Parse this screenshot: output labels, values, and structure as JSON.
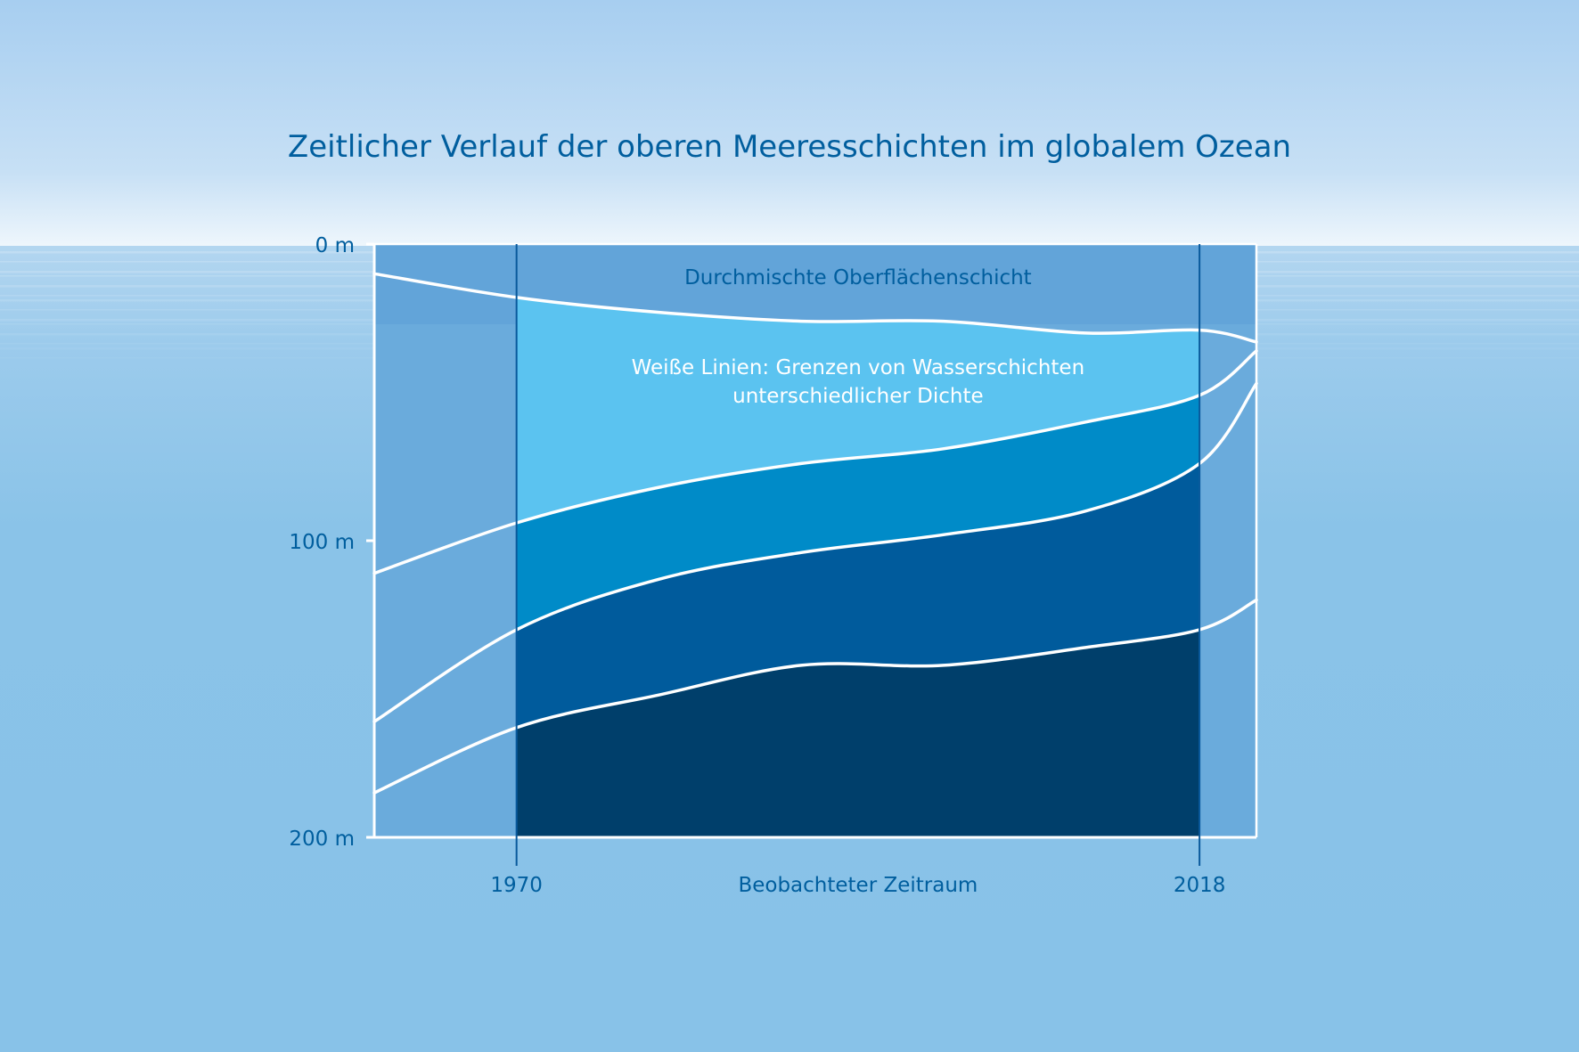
{
  "chart_data": {
    "type": "area",
    "title": "Zeitlicher Verlauf der oberen Meeresschichten im globalem Ozean",
    "x_unit": "year",
    "x": [
      1960,
      1970,
      1980,
      1990,
      2000,
      2010,
      2018,
      2022
    ],
    "x_ticks": [
      1970,
      2018
    ],
    "observed_period": [
      1970,
      2018
    ],
    "observed_period_label": "Beobachteter Zeitraum",
    "y_unit": "m",
    "ylim": [
      0,
      200
    ],
    "y_ticks": [
      0,
      100,
      200
    ],
    "y_tick_labels": [
      "0 m",
      "100 m",
      "200 m"
    ],
    "y_inverted": true,
    "boundary_lines_label": "Weiße Linien: Grenzen von Wasserschichten unterschiedlicher Dichte",
    "boundaries": [
      {
        "label": "Durchmischte Oberflächenschicht",
        "values": [
          10,
          18,
          23,
          26,
          26,
          30,
          29,
          33
        ]
      },
      {
        "values": [
          111,
          94,
          82,
          74,
          69,
          60,
          51,
          36
        ]
      },
      {
        "values": [
          161,
          130,
          113,
          104,
          98,
          90,
          74,
          47
        ]
      },
      {
        "values": [
          185,
          163,
          152,
          142,
          142,
          136,
          130,
          120
        ]
      }
    ],
    "colors": {
      "sky": "#a9cff0",
      "ocean": "#86c2e8",
      "background_layer": "#6aabdc",
      "surface_layer": "#5bc3f0",
      "layer_2": "#008bc8",
      "layer_3": "#005b9c",
      "layer_4": "#003f6b",
      "text": "#005e9e",
      "boundary_line": "#ffffff"
    }
  }
}
